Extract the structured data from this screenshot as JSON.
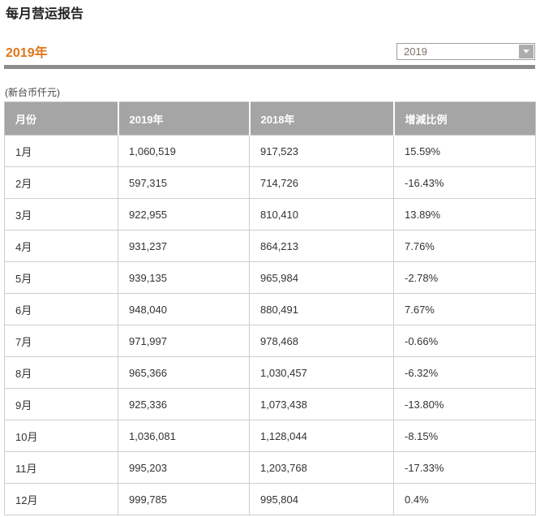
{
  "page": {
    "title": "每月营运报告",
    "year_label": "2019年",
    "unit_note": "(新台币仟元)",
    "year_select": {
      "value": "2019"
    }
  },
  "table": {
    "headers": [
      "月份",
      "2019年",
      "2018年",
      "增減比例"
    ],
    "rows": [
      [
        "1月",
        "1,060,519",
        "917,523",
        "15.59%"
      ],
      [
        "2月",
        "597,315",
        "714,726",
        "-16.43%"
      ],
      [
        "3月",
        "922,955",
        "810,410",
        "13.89%"
      ],
      [
        "4月",
        "931,237",
        "864,213",
        "7.76%"
      ],
      [
        "5月",
        "939,135",
        "965,984",
        "-2.78%"
      ],
      [
        "6月",
        "948,040",
        "880,491",
        "7.67%"
      ],
      [
        "7月",
        "971,997",
        "978,468",
        "-0.66%"
      ],
      [
        "8月",
        "965,366",
        "1,030,457",
        "-6.32%"
      ],
      [
        "9月",
        "925,336",
        "1,073,438",
        "-13.80%"
      ],
      [
        "10月",
        "1,036,081",
        "1,128,044",
        "-8.15%"
      ],
      [
        "11月",
        "995,203",
        "1,203,768",
        "-17.33%"
      ],
      [
        "12月",
        "999,785",
        "995,804",
        "0.4%"
      ]
    ],
    "cell_names": [
      "month-cell",
      "value-2019-cell",
      "value-2018-cell",
      "change-ratio-cell"
    ]
  },
  "colors": {
    "accent_orange": "#e0761b",
    "table_header_bg": "#a5a5a5",
    "divider_gray": "#8c8c8c"
  }
}
